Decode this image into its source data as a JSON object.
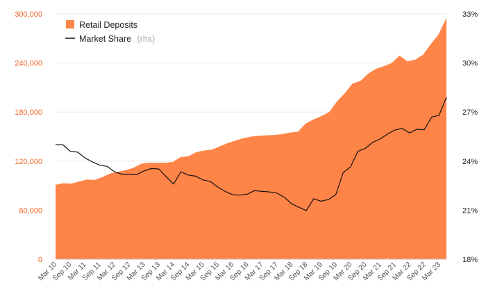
{
  "colors": {
    "area": "#ff8447",
    "line": "#111111",
    "left_axis": "#f26522",
    "right_axis": "#222222",
    "grid": "#e6e6e6"
  },
  "chart_data": {
    "type": "area",
    "series": [
      {
        "name": "Retail Deposits",
        "axis": "left",
        "type": "area",
        "values": [
          91000,
          93000,
          92500,
          95000,
          97500,
          97000,
          100500,
          105000,
          107000,
          109000,
          112000,
          117000,
          118000,
          118000,
          118000,
          119000,
          125000,
          126000,
          131000,
          133000,
          134000,
          138000,
          142000,
          145000,
          148000,
          150000,
          151000,
          151500,
          152000,
          153000,
          155000,
          156000,
          166000,
          171000,
          175000,
          180000,
          193000,
          203000,
          215000,
          218000,
          227000,
          233000,
          236000,
          240000,
          249000,
          242000,
          244000,
          250000,
          263000,
          275000,
          295000
        ]
      },
      {
        "name": "Market Share",
        "suffix": "(rhs)",
        "axis": "right",
        "type": "line",
        "values": [
          25.0,
          25.0,
          24.6,
          24.55,
          24.2,
          23.95,
          23.75,
          23.68,
          23.35,
          23.2,
          23.2,
          23.18,
          23.4,
          23.55,
          23.52,
          23.05,
          22.6,
          23.35,
          23.15,
          23.08,
          22.85,
          22.75,
          22.42,
          22.15,
          21.95,
          21.92,
          21.98,
          22.2,
          22.15,
          22.12,
          22.05,
          21.8,
          21.4,
          21.18,
          20.98,
          21.7,
          21.55,
          21.65,
          21.95,
          23.3,
          23.65,
          24.6,
          24.78,
          25.15,
          25.35,
          25.65,
          25.9,
          26.0,
          25.72,
          25.95,
          25.92,
          26.7,
          26.8,
          27.9
        ]
      }
    ],
    "x_labels": [
      "Mar 10",
      "Sep 10",
      "Mar 11",
      "Sep 11",
      "Mar 12",
      "Sep 12",
      "Mar 13",
      "Sep 13",
      "Mar 14",
      "Sep 14",
      "Mar 15",
      "Sep 15",
      "Mar 16",
      "Sep 16",
      "Mar 17",
      "Sep 17",
      "Mar 18",
      "Sep 18",
      "Mar 19",
      "Sep 19",
      "Mar 20",
      "Sep 20",
      "Mar 21",
      "Sep 21",
      "Mar 22",
      "Sep 22",
      "Mar 23"
    ],
    "left_axis": {
      "ticks": [
        "0",
        "60,000",
        "120,000",
        "180,000",
        "240,000",
        "300,000"
      ],
      "min": 0,
      "max": 300000
    },
    "right_axis": {
      "ticks": [
        "18%",
        "21%",
        "24%",
        "27%",
        "30%",
        "33%"
      ],
      "min": 18,
      "max": 33
    },
    "grid": true,
    "legend": "top-left"
  }
}
